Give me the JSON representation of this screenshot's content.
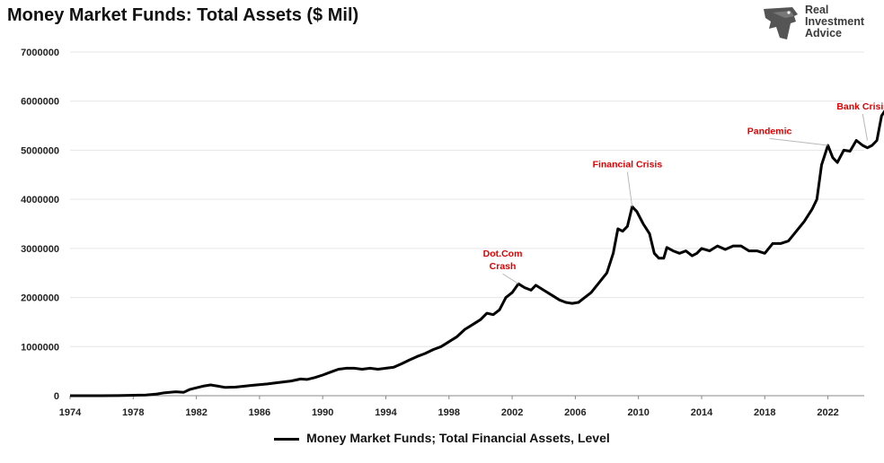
{
  "chart_data": {
    "type": "line",
    "title": "Money Market Funds: Total Assets ($ Mil)",
    "xlabel": "",
    "ylabel": "",
    "xlim": [
      1974,
      2024.3
    ],
    "ylim": [
      0,
      7000000
    ],
    "x_ticks": [
      "1974",
      "1978",
      "1982",
      "1986",
      "1990",
      "1994",
      "1998",
      "2002",
      "2006",
      "2010",
      "2014",
      "2018",
      "2022"
    ],
    "y_ticks": [
      "7000000",
      "6000000",
      "5000000",
      "4000000",
      "3000000",
      "2000000",
      "1000000",
      "0"
    ],
    "grid": "horizontal",
    "legend_position": "bottom",
    "series": [
      {
        "name": "Money Market Funds; Total Financial Assets, Level",
        "color": "#000000",
        "points": [
          [
            1974,
            0
          ],
          [
            1976,
            0
          ],
          [
            1977,
            2000
          ],
          [
            1978,
            10000
          ],
          [
            1978.8,
            15000
          ],
          [
            1979.5,
            35000
          ],
          [
            1980,
            60000
          ],
          [
            1980.7,
            80000
          ],
          [
            1981.2,
            70000
          ],
          [
            1981.6,
            130000
          ],
          [
            1982,
            160000
          ],
          [
            1982.5,
            200000
          ],
          [
            1982.9,
            220000
          ],
          [
            1983.3,
            200000
          ],
          [
            1983.8,
            170000
          ],
          [
            1984.5,
            175000
          ],
          [
            1985.5,
            210000
          ],
          [
            1986.5,
            240000
          ],
          [
            1987,
            260000
          ],
          [
            1988,
            300000
          ],
          [
            1988.6,
            340000
          ],
          [
            1989,
            330000
          ],
          [
            1989.5,
            370000
          ],
          [
            1990,
            420000
          ],
          [
            1990.5,
            480000
          ],
          [
            1991,
            540000
          ],
          [
            1991.5,
            560000
          ],
          [
            1992,
            560000
          ],
          [
            1992.5,
            540000
          ],
          [
            1993,
            560000
          ],
          [
            1993.5,
            540000
          ],
          [
            1994,
            560000
          ],
          [
            1994.5,
            580000
          ],
          [
            1995,
            650000
          ],
          [
            1995.5,
            730000
          ],
          [
            1996,
            800000
          ],
          [
            1996.5,
            860000
          ],
          [
            1997,
            940000
          ],
          [
            1997.5,
            1000000
          ],
          [
            1998,
            1100000
          ],
          [
            1998.5,
            1200000
          ],
          [
            1999,
            1350000
          ],
          [
            1999.5,
            1450000
          ],
          [
            2000,
            1550000
          ],
          [
            2000.4,
            1680000
          ],
          [
            2000.8,
            1650000
          ],
          [
            2001.2,
            1750000
          ],
          [
            2001.6,
            2000000
          ],
          [
            2002,
            2100000
          ],
          [
            2002.4,
            2280000
          ],
          [
            2002.8,
            2200000
          ],
          [
            2003.2,
            2150000
          ],
          [
            2003.5,
            2250000
          ],
          [
            2004,
            2150000
          ],
          [
            2004.5,
            2050000
          ],
          [
            2005,
            1950000
          ],
          [
            2005.4,
            1900000
          ],
          [
            2005.8,
            1880000
          ],
          [
            2006.2,
            1900000
          ],
          [
            2006.6,
            2000000
          ],
          [
            2007,
            2100000
          ],
          [
            2007.5,
            2300000
          ],
          [
            2008,
            2500000
          ],
          [
            2008.4,
            2900000
          ],
          [
            2008.7,
            3400000
          ],
          [
            2009,
            3350000
          ],
          [
            2009.3,
            3450000
          ],
          [
            2009.6,
            3850000
          ],
          [
            2009.9,
            3750000
          ],
          [
            2010.3,
            3500000
          ],
          [
            2010.7,
            3300000
          ],
          [
            2011,
            2900000
          ],
          [
            2011.3,
            2800000
          ],
          [
            2011.6,
            2800000
          ],
          [
            2011.8,
            3020000
          ],
          [
            2012.2,
            2950000
          ],
          [
            2012.6,
            2900000
          ],
          [
            2013,
            2950000
          ],
          [
            2013.4,
            2850000
          ],
          [
            2013.7,
            2900000
          ],
          [
            2014,
            3000000
          ],
          [
            2014.5,
            2950000
          ],
          [
            2015,
            3050000
          ],
          [
            2015.5,
            2980000
          ],
          [
            2016,
            3050000
          ],
          [
            2016.5,
            3050000
          ],
          [
            2017,
            2950000
          ],
          [
            2017.5,
            2950000
          ],
          [
            2018,
            2900000
          ],
          [
            2018.5,
            3100000
          ],
          [
            2019,
            3100000
          ],
          [
            2019.5,
            3150000
          ],
          [
            2020,
            3350000
          ],
          [
            2020.5,
            3550000
          ],
          [
            2021,
            3800000
          ],
          [
            2021.3,
            4000000
          ],
          [
            2021.6,
            4700000
          ],
          [
            2022,
            5100000
          ],
          [
            2022.3,
            4850000
          ],
          [
            2022.6,
            4750000
          ],
          [
            2023,
            5000000
          ],
          [
            2023.4,
            4980000
          ],
          [
            2023.8,
            5200000
          ],
          [
            2024.2,
            5100000
          ],
          [
            2024.5,
            5050000
          ],
          [
            2024.8,
            5100000
          ],
          [
            2025.1,
            5200000
          ],
          [
            2025.4,
            5700000
          ],
          [
            2025.8,
            5900000
          ],
          [
            2026.1,
            6150000
          ],
          [
            2026.4,
            6100000
          ],
          [
            2026.7,
            6500000
          ]
        ]
      }
    ],
    "annotations": [
      {
        "lines": [
          "Dot.Com",
          "Crash"
        ],
        "at": [
          2002.4,
          2280000
        ],
        "text_at": [
          2001.4,
          2830000
        ]
      },
      {
        "lines": [
          "Financial Crisis"
        ],
        "at": [
          2009.6,
          3850000
        ],
        "text_at": [
          2009.3,
          4650000
        ]
      },
      {
        "lines": [
          "Pandemic"
        ],
        "at": [
          2022,
          5100000
        ],
        "text_at": [
          2018.3,
          5330000
        ]
      },
      {
        "lines": [
          "Bank Crisis"
        ],
        "at": [
          2024.5,
          5200000
        ],
        "text_at": [
          2024.2,
          5830000
        ]
      }
    ]
  },
  "logo": {
    "lines": [
      "Real",
      "Investment",
      "Advice"
    ]
  },
  "legend": {
    "label": "Money Market Funds; Total Financial Assets, Level"
  }
}
